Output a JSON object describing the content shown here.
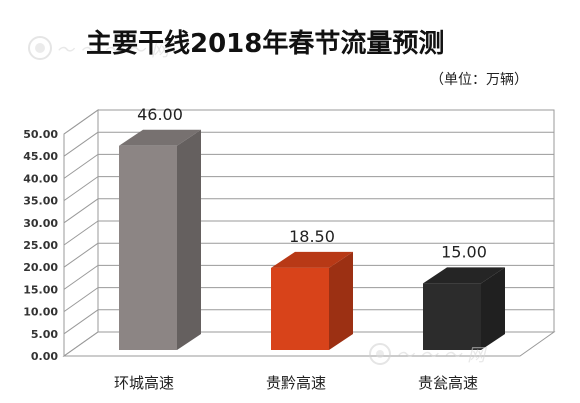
{
  "colors": {
    "bar1": "#8c8584",
    "bar2": "#d8431a",
    "bar3": "#2c2c2c",
    "grid": "#9a9a9a",
    "wall": "#ffffff"
  },
  "chart_data": {
    "type": "bar",
    "title": "主要干线2018年春节流量预测",
    "unit_note": "（单位：万辆）",
    "categories": [
      "环城高速",
      "贵黔高速",
      "贵瓮高速"
    ],
    "values": [
      46.0,
      18.5,
      15.0
    ],
    "value_labels": [
      "46.00",
      "18.50",
      "15.00"
    ],
    "bar_colors": [
      "#8c8584",
      "#d8431a",
      "#2c2c2c"
    ],
    "ylim": [
      0,
      50
    ],
    "yticks": [
      "0.00",
      "5.00",
      "10.00",
      "15.00",
      "20.00",
      "25.00",
      "30.00",
      "35.00",
      "40.00",
      "45.00",
      "50.00"
    ],
    "xlabel": "",
    "ylabel": "",
    "grid": true,
    "legend": "none",
    "style": "3d"
  }
}
